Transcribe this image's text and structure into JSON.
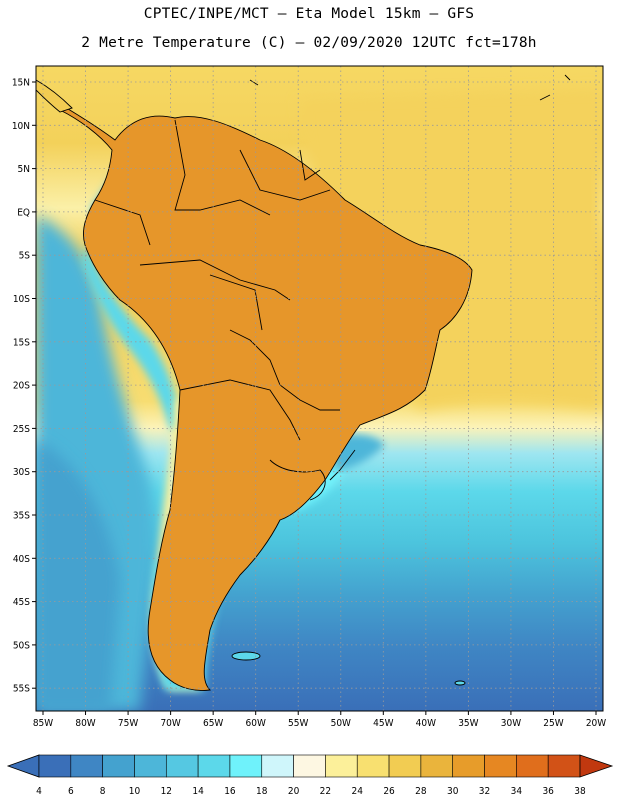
{
  "header": {
    "line1": "CPTEC/INPE/MCT –  Eta Model 15km – GFS",
    "line2": "2 Metre Temperature (C) – 02/09/2020 12UTC fct=178h"
  },
  "axes": {
    "lat_labels": [
      "15N",
      "10N",
      "5N",
      "EQ",
      "5S",
      "10S",
      "15S",
      "20S",
      "25S",
      "30S",
      "35S",
      "40S",
      "45S",
      "50S",
      "55S"
    ],
    "lon_labels": [
      "85W",
      "80W",
      "75W",
      "70W",
      "65W",
      "60W",
      "55W",
      "50W",
      "45W",
      "40W",
      "35W",
      "30W",
      "25W",
      "20W"
    ]
  },
  "colorbar": {
    "labels": [
      "4",
      "6",
      "8",
      "10",
      "12",
      "14",
      "16",
      "18",
      "20",
      "22",
      "24",
      "26",
      "28",
      "30",
      "32",
      "34",
      "36",
      "38"
    ],
    "colors": [
      "#3a6fb8",
      "#3f86c4",
      "#44a2cf",
      "#4db6d9",
      "#55c8e2",
      "#5cd8ea",
      "#6ff2fb",
      "#cff6fb",
      "#fdf7e2",
      "#fcf09a",
      "#f8e070",
      "#f2cc52",
      "#eab43c",
      "#e79c2a",
      "#e68722",
      "#e06e1c",
      "#d25217",
      "#c1380f"
    ],
    "under_color": "#3a6fb8",
    "over_color": "#c1380f"
  }
}
